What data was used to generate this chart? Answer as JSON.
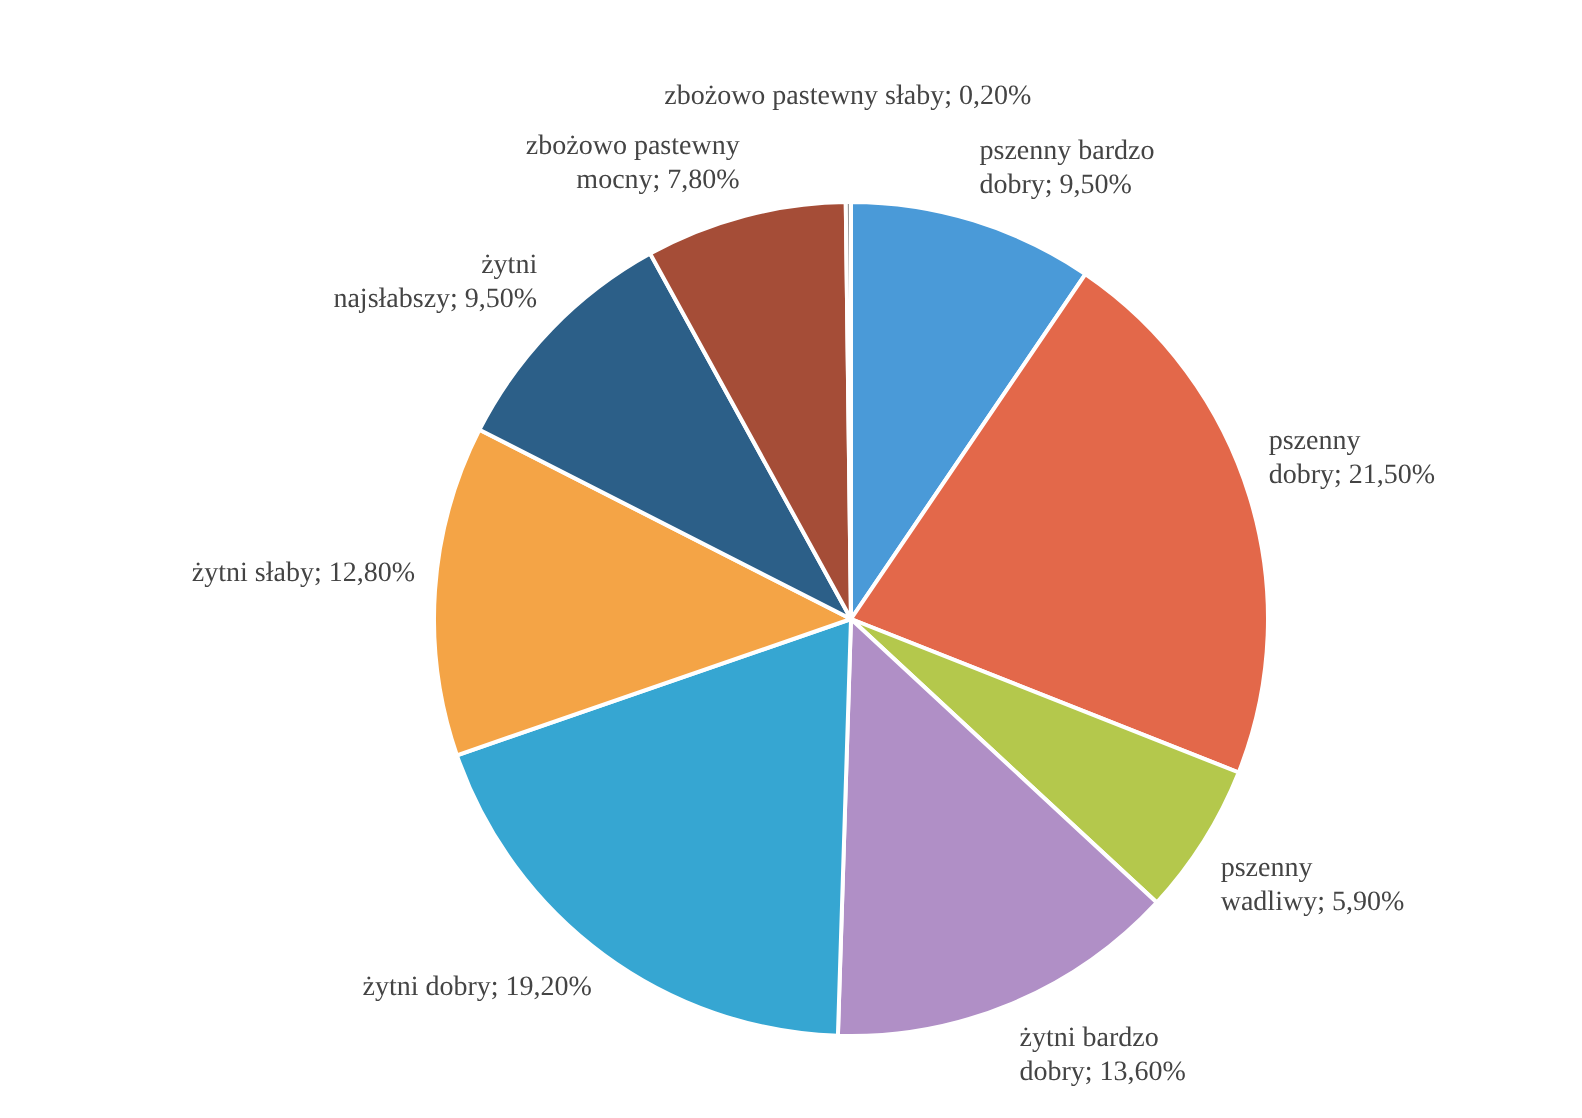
{
  "chart_data": {
    "type": "pie",
    "categories": [
      "pszenny bardzo dobry",
      "pszenny dobry",
      "pszenny wadliwy",
      "żytni bardzo dobry",
      "żytni dobry",
      "żytni słaby",
      "żytni najsłabszy",
      "zbożowo pastewny mocny",
      "zbożowo pastewny słaby"
    ],
    "values": [
      9.5,
      21.5,
      5.9,
      13.6,
      19.2,
      12.8,
      9.5,
      7.8,
      0.2
    ],
    "value_labels": [
      "9,50%",
      "21,50%",
      "5,90%",
      "13,60%",
      "19,20%",
      "12,80%",
      "9,50%",
      "7,80%",
      "0,20%"
    ],
    "colors": [
      "#4a9ad8",
      "#e3684a",
      "#b4c84c",
      "#b08fc6",
      "#36a6d2",
      "#f4a446",
      "#2c5f88",
      "#a54d37",
      "#9a9a9a"
    ],
    "legend": false
  }
}
